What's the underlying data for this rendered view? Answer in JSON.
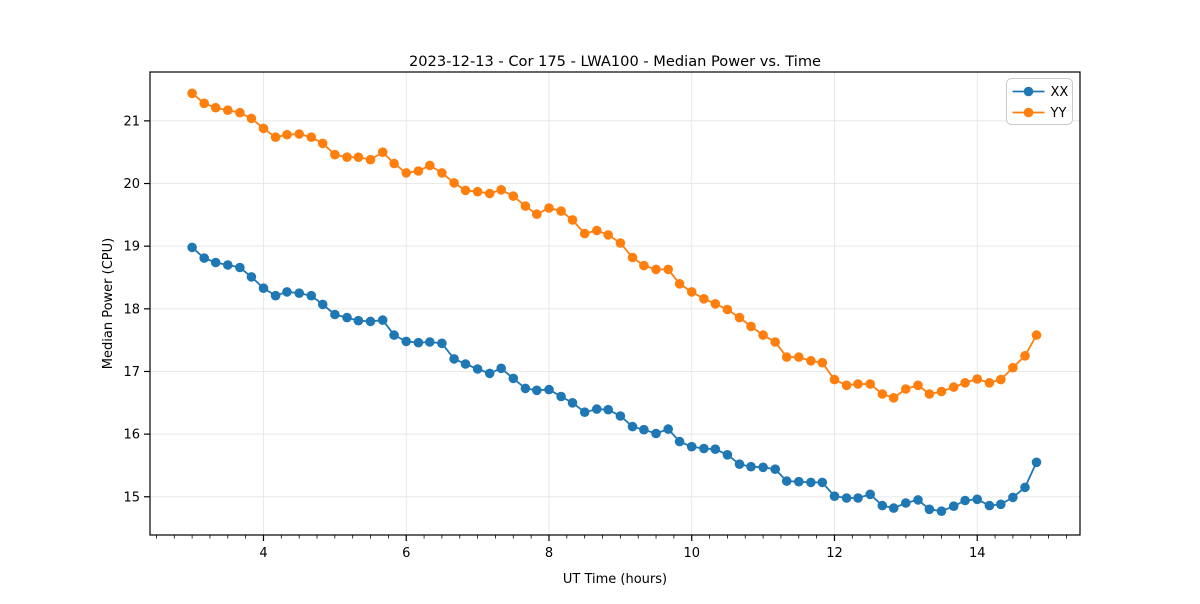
{
  "chart_data": {
    "type": "line",
    "title": "2023-12-13 - Cor 175 - LWA100 - Median Power vs. Time",
    "xlabel": "UT Time (hours)",
    "ylabel": "Median Power (CPU)",
    "xlim": [
      2.41,
      15.44
    ],
    "ylim": [
      14.39,
      21.78
    ],
    "xticks": [
      4,
      6,
      8,
      10,
      12,
      14
    ],
    "yticks": [
      15,
      16,
      17,
      18,
      19,
      20,
      21
    ],
    "x_minor_tick_step": 0.25,
    "grid": true,
    "grid_color": "#e6e6e6",
    "spine_color": "#000000",
    "legend_position": "upper right",
    "marker": "o",
    "x": [
      3.0,
      3.17,
      3.33,
      3.5,
      3.67,
      3.83,
      4.0,
      4.17,
      4.33,
      4.5,
      4.67,
      4.83,
      5.0,
      5.17,
      5.33,
      5.5,
      5.67,
      5.83,
      6.0,
      6.17,
      6.33,
      6.5,
      6.67,
      6.83,
      7.0,
      7.17,
      7.33,
      7.5,
      7.67,
      7.83,
      8.0,
      8.17,
      8.33,
      8.5,
      8.67,
      8.83,
      9.0,
      9.17,
      9.33,
      9.5,
      9.67,
      9.83,
      10.0,
      10.17,
      10.33,
      10.5,
      10.67,
      10.83,
      11.0,
      11.17,
      11.33,
      11.5,
      11.67,
      11.83,
      12.0,
      12.17,
      12.33,
      12.5,
      12.67,
      12.83,
      13.0,
      13.17,
      13.33,
      13.5,
      13.67,
      13.83,
      14.0,
      14.17,
      14.33,
      14.5,
      14.67,
      14.83
    ],
    "series": [
      {
        "name": "XX",
        "color": "#1f77b4",
        "values": [
          18.98,
          18.81,
          18.74,
          18.7,
          18.66,
          18.51,
          18.33,
          18.21,
          18.27,
          18.25,
          18.21,
          18.07,
          17.91,
          17.86,
          17.81,
          17.8,
          17.82,
          17.58,
          17.48,
          17.46,
          17.47,
          17.45,
          17.2,
          17.12,
          17.04,
          16.97,
          17.05,
          16.89,
          16.73,
          16.7,
          16.71,
          16.6,
          16.5,
          16.35,
          16.4,
          16.39,
          16.29,
          16.12,
          16.07,
          16.01,
          16.08,
          15.88,
          15.8,
          15.77,
          15.76,
          15.67,
          15.52,
          15.48,
          15.47,
          15.44,
          15.25,
          15.24,
          15.23,
          15.23,
          15.01,
          14.98,
          14.98,
          15.04,
          14.86,
          14.82,
          14.9,
          14.95,
          14.8,
          14.77,
          14.85,
          14.94,
          14.96,
          14.86,
          14.88,
          14.99,
          15.15,
          15.55
        ]
      },
      {
        "name": "YY",
        "color": "#ff7f0e",
        "values": [
          21.44,
          21.28,
          21.21,
          21.17,
          21.13,
          21.04,
          20.88,
          20.74,
          20.78,
          20.79,
          20.74,
          20.64,
          20.46,
          20.42,
          20.42,
          20.38,
          20.5,
          20.32,
          20.17,
          20.2,
          20.29,
          20.17,
          20.01,
          19.89,
          19.87,
          19.84,
          19.9,
          19.8,
          19.64,
          19.51,
          19.61,
          19.56,
          19.42,
          19.2,
          19.25,
          19.18,
          19.05,
          18.82,
          18.69,
          18.63,
          18.63,
          18.4,
          18.27,
          18.16,
          18.08,
          17.99,
          17.86,
          17.72,
          17.58,
          17.47,
          17.23,
          17.23,
          17.17,
          17.14,
          16.87,
          16.78,
          16.8,
          16.8,
          16.64,
          16.58,
          16.72,
          16.78,
          16.64,
          16.68,
          16.75,
          16.82,
          16.88,
          16.82,
          16.87,
          17.06,
          17.25,
          17.58
        ]
      }
    ]
  }
}
